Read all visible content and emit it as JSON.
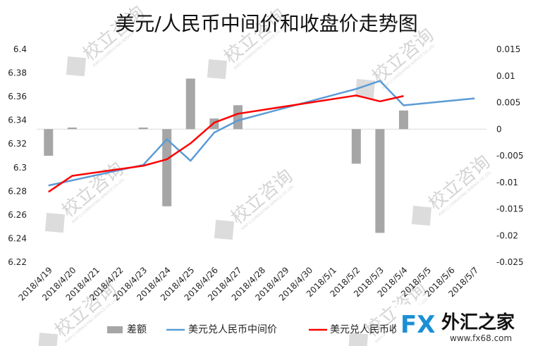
{
  "chart_data": {
    "type": "bar+line",
    "title": "美元/人民币中间价和收盘价走势图",
    "categories": [
      "2018/4/19",
      "2018/4/20",
      "2018/4/21",
      "2018/4/22",
      "2018/4/23",
      "2018/4/24",
      "2018/4/25",
      "2018/4/26",
      "2018/4/27",
      "2018/4/28",
      "2018/4/29",
      "2018/4/30",
      "2018/5/1",
      "2018/5/2",
      "2018/5/3",
      "2018/5/4",
      "2018/5/5",
      "2018/5/6",
      "2018/5/7"
    ],
    "left_axis": {
      "ylim": [
        6.22,
        6.4
      ],
      "ticks": [
        "6.4",
        "6.38",
        "6.36",
        "6.34",
        "6.32",
        "6.3",
        "6.28",
        "6.26",
        "6.24",
        "6.22"
      ]
    },
    "right_axis": {
      "ylim": [
        -0.025,
        0.015
      ],
      "ticks": [
        "0.015",
        "0.01",
        "0.005",
        "0",
        "-0.005",
        "-0.01",
        "-0.015",
        "-0.02",
        "-0.025"
      ]
    },
    "series": [
      {
        "name": "差额",
        "type": "bar",
        "axis": "right",
        "color": "#a6a6a6",
        "values": [
          -0.005,
          0.0003,
          null,
          null,
          0.0003,
          -0.0145,
          0.0095,
          0.002,
          0.0045,
          null,
          null,
          null,
          null,
          -0.0065,
          -0.0195,
          0.0035,
          null,
          null,
          null
        ]
      },
      {
        "name": "美元兑人民币中间价",
        "type": "line",
        "axis": "left",
        "color": "#5b9bd5",
        "values": [
          6.2848,
          null,
          null,
          null,
          6.3022,
          6.3239,
          6.3057,
          6.3296,
          6.3398,
          null,
          null,
          null,
          null,
          6.3665,
          6.3733,
          6.3526,
          null,
          null,
          6.3585
        ]
      },
      {
        "name": "美元兑人民币收盘价",
        "type": "line",
        "axis": "left",
        "color": "#ff0000",
        "values": [
          6.2794,
          6.293,
          null,
          null,
          6.3015,
          6.307,
          6.3205,
          6.338,
          6.3455,
          null,
          null,
          null,
          null,
          6.361,
          6.356,
          6.3605,
          null,
          null,
          null
        ]
      }
    ],
    "legend": {
      "position": "bottom",
      "labels": [
        "差额",
        "美元兑人民币中间价",
        "美元兑人民币收"
      ]
    }
  },
  "watermark": {
    "text": "校立咨询",
    "subtext": "XIAO LI CONSULTING SERVICE CO.,LTD."
  },
  "logo": {
    "fx": "FX",
    "cn": "外汇之家",
    "url": "www.fx68.com"
  }
}
